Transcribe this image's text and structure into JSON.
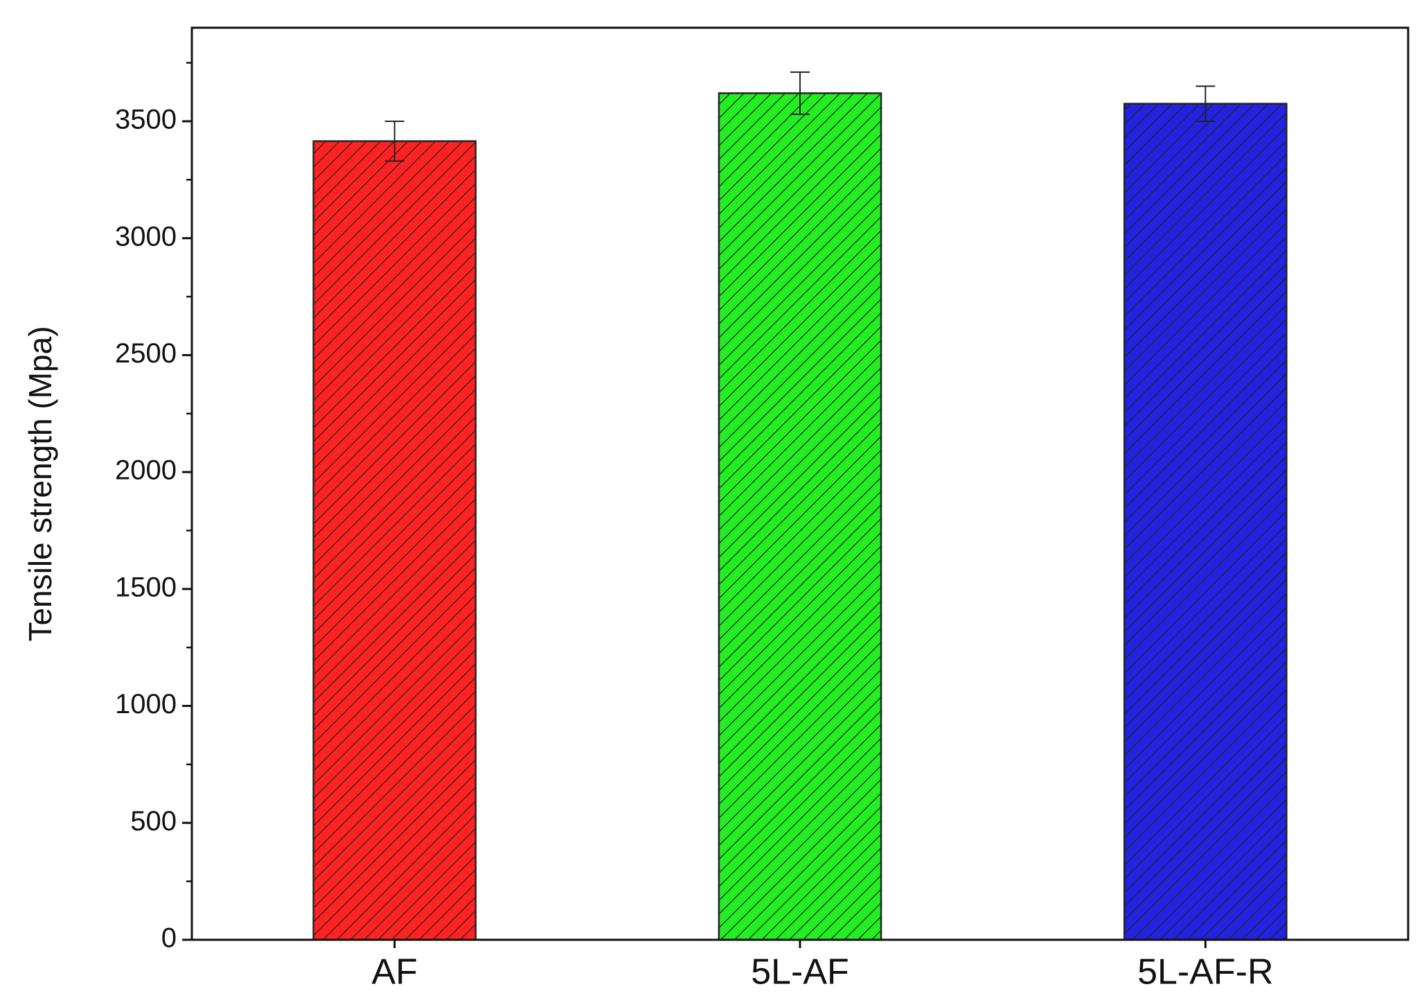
{
  "chart_data": {
    "type": "bar",
    "y_label": "Tensile strength (Mpa)",
    "categories": [
      "AF",
      "5L-AF",
      "5L-AF-R"
    ],
    "values": [
      3415,
      3620,
      3575
    ],
    "errors": [
      85,
      90,
      75
    ],
    "colors": [
      "#ff2222",
      "#22ee22",
      "#2222e0"
    ],
    "ylim": [
      0,
      3900
    ],
    "yticks": [
      0,
      500,
      1000,
      1500,
      2000,
      2500,
      3000,
      3500
    ],
    "hatch": true
  }
}
